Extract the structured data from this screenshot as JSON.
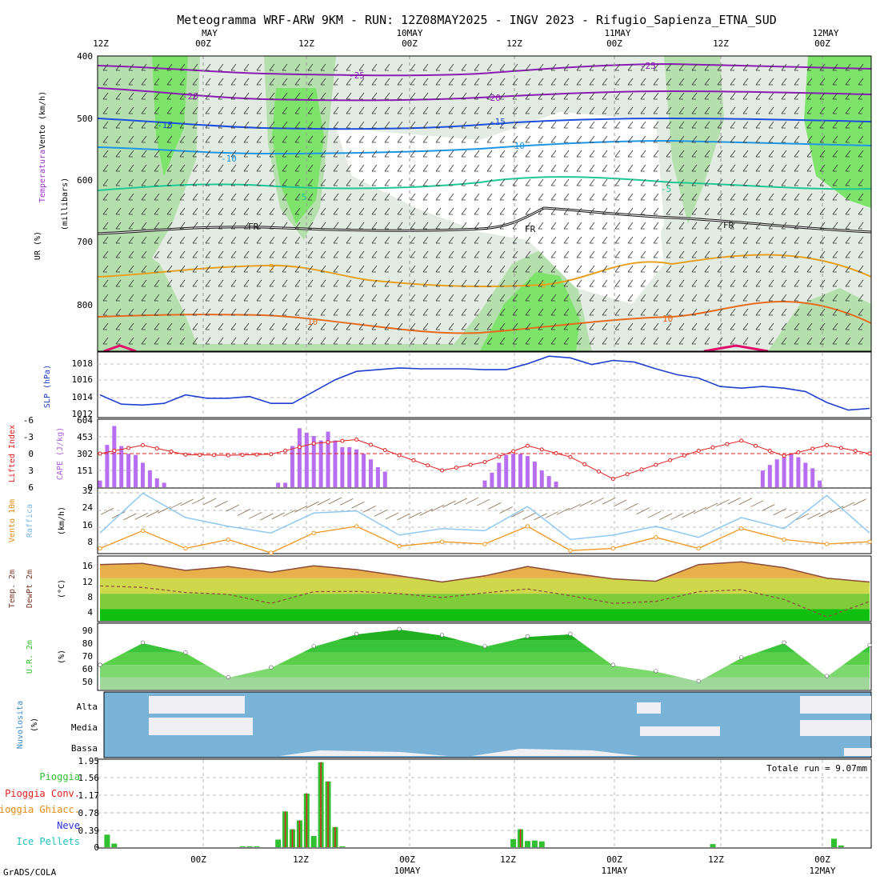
{
  "title": "Meteogramma WRF-ARW 9KM - RUN: 12Z08MAY2025 - INGV 2023 - Rifugio_Sapienza_ETNA_SUD",
  "footer": "GrADS/COLA",
  "time_axis": {
    "top_hours": [
      "12Z",
      "00Z",
      "12Z",
      "00Z",
      "12Z",
      "00Z",
      "12Z",
      "00Z"
    ],
    "top_dates": [
      "MAY",
      "10MAY",
      "11MAY",
      "12MAY"
    ],
    "bottom_hours": [
      "00Z",
      "12Z",
      "00Z",
      "12Z",
      "00Z",
      "12Z",
      "00Z"
    ],
    "bottom_dates": [
      "10MAY",
      "11MAY",
      "12MAY"
    ]
  },
  "panels": {
    "upper": {
      "labels": [
        "Vento (km/h)",
        "Temperatura",
        "UR (%)",
        "(millibars)"
      ],
      "y_ticks": [
        "400",
        "500",
        "600",
        "700",
        "800"
      ],
      "isotherm_labels": [
        "-25",
        "-20",
        "-15",
        "-10",
        "-5",
        "FR",
        "5",
        "10"
      ]
    },
    "slp": {
      "label": "SLP (hPa)",
      "y_ticks": [
        "1012",
        "1014",
        "1016",
        "1018"
      ]
    },
    "cape": {
      "label_left": "Lifted Index",
      "label_right": "CAPE (J/kg)",
      "li_ticks": [
        "-6",
        "-3",
        "0",
        "3",
        "6"
      ],
      "cape_ticks": [
        "604",
        "453",
        "302",
        "151",
        "0"
      ]
    },
    "wind": {
      "label1": "Vento 10m",
      "label2": "Raffica",
      "units": "(km/h)",
      "y_ticks": [
        "8",
        "16",
        "24",
        "32"
      ]
    },
    "temp": {
      "label1": "Temp. 2m",
      "label2": "DewPt 2m",
      "units": "(°C)",
      "y_ticks": [
        "4",
        "8",
        "12",
        "16"
      ]
    },
    "rh": {
      "label": "U.R. 2m",
      "units": "(%)",
      "y_ticks": [
        "50",
        "60",
        "70",
        "80",
        "90"
      ]
    },
    "cloud": {
      "label": "Nuvolosita",
      "units": "(%)",
      "levels": [
        "Alta",
        "Media",
        "Bassa"
      ]
    },
    "precip": {
      "total": "Totale run = 9.07mm",
      "legend": [
        "Pioggia",
        "Pioggia Conv.",
        "Pioggia Ghiacc.",
        "Neve",
        "Ice Pellets"
      ],
      "y_ticks": [
        "0",
        "0.39",
        "0.78",
        "1.17",
        "1.56",
        "1.95"
      ]
    }
  },
  "chart_data": [
    {
      "type": "line",
      "title": "SLP (hPa)",
      "ylim": [
        1011.8,
        1019.4
      ],
      "x": [
        0,
        3,
        6,
        9,
        12,
        15,
        18,
        21,
        24,
        27,
        30,
        33,
        36,
        39,
        42,
        45,
        48,
        51,
        54,
        57,
        60,
        63,
        66,
        69,
        72,
        75,
        78,
        81,
        84,
        87,
        90,
        93,
        96,
        99,
        102,
        105,
        108
      ],
      "values": [
        1014.4,
        1013.3,
        1013.2,
        1013.4,
        1014.4,
        1014.0,
        1014.0,
        1014.2,
        1013.4,
        1013.4,
        1014.8,
        1016.2,
        1017.2,
        1017.4,
        1017.6,
        1017.5,
        1017.5,
        1017.5,
        1017.4,
        1017.4,
        1018.1,
        1019.0,
        1018.8,
        1018.0,
        1018.5,
        1018.3,
        1017.5,
        1016.8,
        1016.4,
        1015.4,
        1015.2,
        1015.4,
        1015.2,
        1014.8,
        1013.5,
        1012.6,
        1012.8
      ]
    },
    {
      "type": "bar",
      "title": "CAPE (J/kg)",
      "ylim": [
        0,
        604
      ],
      "x": [
        0,
        1,
        2,
        3,
        4,
        5,
        6,
        7,
        8,
        9,
        10,
        11,
        12,
        13,
        14,
        15,
        16,
        17,
        18,
        19,
        20,
        21,
        22,
        23,
        24,
        25,
        26,
        27,
        28,
        29,
        30,
        31,
        32,
        33,
        34,
        35,
        36,
        37,
        38,
        39,
        40,
        41,
        42,
        43,
        44,
        45,
        46,
        47,
        48,
        49,
        50,
        51,
        52,
        53,
        54,
        55,
        56,
        57,
        58,
        59,
        60,
        61,
        62,
        63,
        64,
        65,
        66,
        67,
        68,
        69,
        70,
        71,
        72,
        73,
        74,
        75,
        76,
        77,
        78,
        79,
        80,
        81,
        82,
        83,
        84,
        85,
        86,
        87,
        88,
        89,
        90,
        91,
        92,
        93,
        94,
        95,
        96,
        97,
        98,
        99,
        100,
        101,
        102,
        103,
        104,
        105,
        106,
        107,
        108
      ],
      "values": [
        60,
        380,
        550,
        370,
        300,
        290,
        220,
        150,
        80,
        40,
        0,
        0,
        0,
        0,
        0,
        0,
        0,
        0,
        0,
        0,
        0,
        0,
        0,
        0,
        0,
        40,
        40,
        370,
        530,
        490,
        460,
        420,
        500,
        420,
        360,
        360,
        340,
        300,
        250,
        180,
        140,
        0,
        0,
        0,
        0,
        0,
        0,
        0,
        0,
        0,
        0,
        0,
        0,
        0,
        60,
        130,
        220,
        290,
        300,
        300,
        280,
        230,
        150,
        100,
        50,
        0,
        0,
        0,
        0,
        0,
        0,
        0,
        0,
        0,
        0,
        0,
        0,
        0,
        0,
        0,
        0,
        0,
        0,
        0,
        0,
        0,
        0,
        0,
        0,
        0,
        0,
        0,
        0,
        150,
        200,
        250,
        270,
        300,
        270,
        220,
        170,
        60,
        0,
        0,
        0,
        0,
        0,
        0,
        0
      ]
    },
    {
      "type": "line",
      "title": "Lifted Index",
      "ylim": [
        6,
        -6
      ],
      "x": [
        0,
        6,
        12,
        18,
        24,
        30,
        36,
        42,
        48,
        54,
        60,
        66,
        72,
        78,
        84,
        90,
        96,
        102,
        108
      ],
      "values": [
        0,
        -1.5,
        0.2,
        0.3,
        0.1,
        -1.8,
        -2.5,
        0.3,
        3.0,
        1.5,
        -1.4,
        0.6,
        4.5,
        2.0,
        -0.5,
        -2.3,
        0.4,
        -1.5,
        0
      ]
    },
    {
      "type": "line",
      "title": "Vento 10m / Raffica (km/h)",
      "ylim": [
        3,
        32
      ],
      "x": [
        0,
        6,
        12,
        18,
        24,
        30,
        36,
        42,
        48,
        54,
        60,
        66,
        72,
        78,
        84,
        90,
        96,
        102,
        108
      ],
      "series": [
        {
          "name": "Vento 10m",
          "values": [
            5,
            13,
            5,
            9,
            3,
            12,
            15,
            6,
            8,
            7,
            15,
            4,
            5,
            10,
            5,
            14,
            9,
            7,
            8
          ]
        },
        {
          "name": "Raffica",
          "values": [
            12,
            30,
            19,
            15,
            12,
            21,
            22,
            11,
            14,
            13,
            24,
            9,
            11,
            15,
            10,
            19,
            14,
            29,
            12
          ]
        }
      ]
    },
    {
      "type": "area",
      "title": "Temp. 2m / DewPt 2m (°C)",
      "ylim": [
        1,
        17.5
      ],
      "x": [
        0,
        6,
        12,
        18,
        24,
        30,
        36,
        42,
        48,
        54,
        60,
        66,
        72,
        78,
        84,
        90,
        96,
        102,
        108
      ],
      "series": [
        {
          "name": "Temp. 2m",
          "values": [
            15.5,
            15.8,
            14.0,
            15.0,
            13.5,
            15.2,
            14.2,
            12.6,
            11.0,
            12.6,
            15.0,
            13.3,
            11.8,
            11.2,
            15.5,
            16.2,
            14.7,
            12.0,
            11.0
          ]
        },
        {
          "name": "DewPt 2m",
          "values": [
            10.0,
            9.6,
            8.3,
            7.8,
            5.5,
            8.5,
            8.6,
            8.0,
            7.0,
            8.2,
            9.2,
            7.5,
            5.5,
            6.0,
            8.5,
            9.0,
            6.5,
            2.0,
            6.0
          ]
        }
      ]
    },
    {
      "type": "area",
      "title": "U.R. 2m (%)",
      "ylim": [
        40,
        93
      ],
      "x": [
        0,
        6,
        12,
        18,
        24,
        30,
        36,
        42,
        48,
        54,
        60,
        66,
        72,
        78,
        84,
        90,
        96,
        102,
        108
      ],
      "values": [
        60,
        78,
        70,
        50,
        58,
        75,
        85,
        89,
        84,
        75,
        83,
        85,
        60,
        55,
        47,
        66,
        78,
        51,
        76
      ]
    },
    {
      "type": "bar",
      "title": "Pioggia (mm)",
      "ylim": [
        0,
        1.95
      ],
      "x": [
        1,
        2,
        20,
        21,
        22,
        25,
        26,
        27,
        28,
        29,
        30,
        31,
        32,
        33,
        34,
        58,
        59,
        60,
        61,
        62,
        86,
        103,
        104
      ],
      "values": [
        0.28,
        0.08,
        0.02,
        0.02,
        0.02,
        0.17,
        0.8,
        0.4,
        0.6,
        1.2,
        0.25,
        1.9,
        1.47,
        0.45,
        0.02,
        0.18,
        0.4,
        0.14,
        0.15,
        0.13,
        0.07,
        0.19,
        0.04
      ]
    }
  ]
}
